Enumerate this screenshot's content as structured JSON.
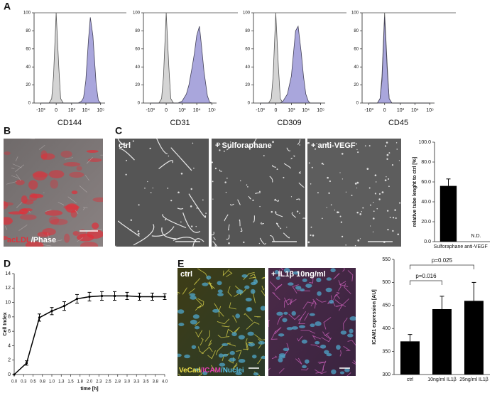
{
  "panel_labels": [
    "A",
    "B",
    "C",
    "D",
    "E"
  ],
  "images": {
    "b": {
      "label": [
        "acLDL",
        "/Phase"
      ]
    },
    "c": {
      "labels": [
        "ctrl",
        "+ Sulforaphane",
        "+ anti-VEGF"
      ]
    },
    "e": {
      "labels": [
        "ctrl",
        "+ IL1β 10ng/ml"
      ],
      "stain": [
        "VeCad",
        "/ICAM",
        "/Nuclei"
      ]
    }
  },
  "chart_data": [
    {
      "type": "area",
      "xlabel": "CD144",
      "xscale": "biexponential",
      "xlim": [
        -3000,
        200000
      ],
      "ylim": [
        0,
        100
      ],
      "x": [
        -1000,
        -500,
        -200,
        -100,
        -50,
        0,
        50,
        100,
        200,
        500,
        1000,
        2000,
        3000,
        5000,
        7000,
        10000,
        15000,
        20000,
        30000,
        50000,
        70000,
        100000
      ],
      "xticks": [
        {
          "value": -1000,
          "label": "-10³"
        },
        0,
        {
          "value": 1000,
          "label": "10³"
        },
        {
          "value": 10000,
          "label": "10⁴"
        },
        {
          "value": 100000,
          "label": "10⁵"
        }
      ],
      "yticks": [
        0,
        20,
        40,
        60,
        80,
        100
      ],
      "series": [
        {
          "color": "#d4d4d4",
          "values": [
            0,
            0,
            0,
            5,
            30,
            100,
            40,
            5,
            0,
            0,
            0,
            0,
            0,
            0,
            0,
            0,
            0,
            0,
            0,
            0,
            0,
            0
          ]
        },
        {
          "color": "#a9a6dc",
          "values": [
            0,
            0,
            0,
            0,
            0,
            0,
            0,
            0,
            0,
            0,
            0,
            0,
            0,
            2,
            6,
            25,
            70,
            95,
            75,
            20,
            3,
            0
          ]
        }
      ]
    },
    {
      "type": "area",
      "xlabel": "CD31",
      "xscale": "biexponential",
      "xlim": [
        -3000,
        200000
      ],
      "ylim": [
        0,
        100
      ],
      "x": [
        -1000,
        -500,
        -200,
        -100,
        -50,
        0,
        50,
        100,
        200,
        500,
        1000,
        2000,
        3000,
        5000,
        7000,
        10000,
        15000,
        20000,
        30000,
        50000,
        70000,
        100000
      ],
      "xticks": [
        {
          "value": -1000,
          "label": "-10³"
        },
        0,
        {
          "value": 1000,
          "label": "10³"
        },
        {
          "value": 10000,
          "label": "10⁴"
        },
        {
          "value": 100000,
          "label": "10⁵"
        }
      ],
      "yticks": [
        0,
        20,
        40,
        60,
        80,
        100
      ],
      "series": [
        {
          "color": "#d4d4d4",
          "values": [
            0,
            0,
            0,
            5,
            30,
            100,
            40,
            5,
            0,
            0,
            0,
            0,
            0,
            0,
            0,
            0,
            0,
            0,
            0,
            0,
            0,
            0
          ]
        },
        {
          "color": "#a9a6dc",
          "values": [
            0,
            0,
            0,
            0,
            0,
            0,
            0,
            0,
            0,
            0,
            2,
            10,
            20,
            40,
            55,
            75,
            85,
            65,
            35,
            8,
            1,
            0
          ]
        }
      ]
    },
    {
      "type": "area",
      "xlabel": "CD309",
      "xscale": "biexponential",
      "xlim": [
        -3000,
        200000
      ],
      "ylim": [
        0,
        100
      ],
      "x": [
        -1000,
        -500,
        -200,
        -100,
        -50,
        0,
        50,
        100,
        200,
        500,
        1000,
        2000,
        3000,
        5000,
        7000,
        10000,
        15000,
        20000,
        30000,
        50000,
        70000,
        100000
      ],
      "xticks": [
        {
          "value": -1000,
          "label": "-10³"
        },
        0,
        {
          "value": 1000,
          "label": "10³"
        },
        {
          "value": 10000,
          "label": "10⁴"
        },
        {
          "value": 100000,
          "label": "10⁵"
        }
      ],
      "yticks": [
        0,
        20,
        40,
        60,
        80,
        100
      ],
      "series": [
        {
          "color": "#d4d4d4",
          "values": [
            0,
            0,
            0,
            5,
            30,
            100,
            40,
            5,
            0,
            0,
            0,
            0,
            0,
            0,
            0,
            0,
            0,
            0,
            0,
            0,
            0,
            0
          ]
        },
        {
          "color": "#a9a6dc",
          "values": [
            0,
            0,
            0,
            0,
            0,
            0,
            0,
            0,
            2,
            10,
            30,
            80,
            85,
            55,
            30,
            10,
            2,
            0,
            0,
            0,
            0,
            0
          ]
        }
      ]
    },
    {
      "type": "area",
      "xlabel": "CD45",
      "xscale": "biexponential",
      "xlim": [
        -3000,
        200000
      ],
      "ylim": [
        0,
        100
      ],
      "x": [
        -1000,
        -500,
        -200,
        -100,
        -50,
        0,
        50,
        100,
        200,
        500,
        1000,
        2000,
        3000,
        5000,
        7000,
        10000,
        15000,
        20000,
        30000,
        50000,
        70000,
        100000
      ],
      "xticks": [
        {
          "value": -1000,
          "label": "-10³"
        },
        0,
        {
          "value": 1000,
          "label": "10³"
        },
        {
          "value": 10000,
          "label": "10⁴"
        },
        {
          "value": 100000,
          "label": "10⁵"
        }
      ],
      "yticks": [
        0,
        20,
        40,
        60,
        80,
        100
      ],
      "series": [
        {
          "color": "#d4d4d4",
          "values": [
            0,
            0,
            0,
            5,
            30,
            100,
            40,
            5,
            0,
            0,
            0,
            0,
            0,
            0,
            0,
            0,
            0,
            0,
            0,
            0,
            0,
            0
          ]
        },
        {
          "color": "#a9a6dc",
          "values": [
            0,
            0,
            0,
            5,
            25,
            95,
            35,
            5,
            0,
            0,
            0,
            0,
            0,
            0,
            0,
            0,
            0,
            0,
            0,
            0,
            0,
            0
          ]
        }
      ]
    },
    {
      "type": "bar",
      "ylabel": "relative tube lenght to ctrl [%]",
      "categories": [
        "Sulforaphane",
        "anti-VEGF"
      ],
      "values": [
        56,
        null
      ],
      "errors": [
        7,
        null
      ],
      "value_labels": [
        null,
        "N.D."
      ],
      "color": "#000000",
      "ylim": [
        0,
        100
      ],
      "yticks": [
        {
          "value": 0,
          "label": "0.0"
        },
        {
          "value": 20,
          "label": "20.0"
        },
        {
          "value": 40,
          "label": "40.0"
        },
        {
          "value": 60,
          "label": "60.0"
        },
        {
          "value": 80,
          "label": "80.0"
        },
        {
          "value": 100,
          "label": "100.0"
        }
      ]
    },
    {
      "type": "line",
      "xlabel": "time [h]",
      "ylabel": "Cell Index",
      "x": [
        0,
        0.33,
        0.67,
        1.0,
        1.33,
        1.67,
        2.0,
        2.33,
        2.67,
        3.0,
        3.33,
        3.67,
        4.0
      ],
      "values": [
        0,
        1.6,
        7.9,
        8.8,
        9.5,
        10.5,
        10.8,
        10.9,
        10.9,
        10.9,
        10.8,
        10.8,
        10.8
      ],
      "errors": [
        0,
        0.3,
        0.5,
        0.5,
        0.6,
        0.6,
        0.6,
        0.6,
        0.6,
        0.5,
        0.5,
        0.5,
        0.4
      ],
      "color": "#000000",
      "xlim": [
        0,
        4
      ],
      "ylim": [
        0,
        14
      ],
      "xticks": [
        {
          "value": 0,
          "label": "0.0"
        },
        {
          "value": 0.25,
          "label": "0.3"
        },
        {
          "value": 0.5,
          "label": "0.5"
        },
        {
          "value": 0.75,
          "label": "0.8"
        },
        {
          "value": 1,
          "label": "1.0"
        },
        {
          "value": 1.25,
          "label": "1.3"
        },
        {
          "value": 1.5,
          "label": "1.5"
        },
        {
          "value": 1.75,
          "label": "1.8"
        },
        {
          "value": 2,
          "label": "2.0"
        },
        {
          "value": 2.25,
          "label": "2.3"
        },
        {
          "value": 2.5,
          "label": "2.5"
        },
        {
          "value": 2.75,
          "label": "2.8"
        },
        {
          "value": 3,
          "label": "3.0"
        },
        {
          "value": 3.25,
          "label": "3.3"
        },
        {
          "value": 3.5,
          "label": "3.5"
        },
        {
          "value": 3.75,
          "label": "3.8"
        },
        {
          "value": 4,
          "label": "4.0"
        }
      ],
      "yticks": [
        0,
        2,
        4,
        6,
        8,
        10,
        12,
        14
      ]
    },
    {
      "type": "bar",
      "ylabel": "ICAM1 expression [AU]",
      "categories": [
        "ctrl",
        "10ng/ml IL1β",
        "25ng/ml IL1β"
      ],
      "values": [
        372,
        442,
        460
      ],
      "errors": [
        15,
        28,
        40
      ],
      "color": "#000000",
      "ylim": [
        300,
        550
      ],
      "yticks": [
        300,
        350,
        400,
        450,
        500,
        550
      ],
      "annotations": [
        "p=0.016",
        "p=0.025"
      ]
    }
  ]
}
